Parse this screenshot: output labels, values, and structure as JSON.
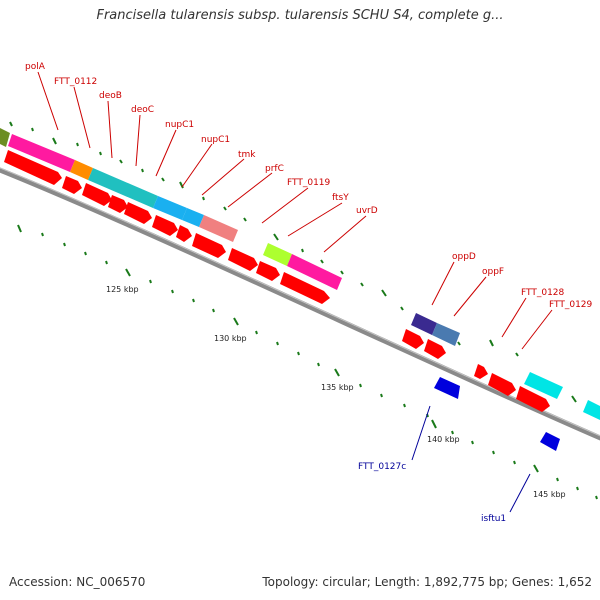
{
  "title": "Francisella tularensis subsp. tularensis SCHU S4, complete g...",
  "footer": {
    "accession": "Accession: NC_006570",
    "summary": "Topology: circular; Length: 1,892,775 bp; Genes: 1,652"
  },
  "colors": {
    "backbone": "#8a8a8a",
    "cds": "#ff0000",
    "reverse_cds": "#0000dd",
    "top_label": "#cc0000",
    "bottom_label": "#000099",
    "tick": "#1a7a1a"
  },
  "ticks": [
    {
      "label": "125 kbp"
    },
    {
      "label": "130 kbp"
    },
    {
      "label": "135 kbp"
    },
    {
      "label": "140 kbp"
    },
    {
      "label": "145 kbp"
    }
  ],
  "labels_top": [
    {
      "text": "polA"
    },
    {
      "text": "FTT_0112"
    },
    {
      "text": "deoB"
    },
    {
      "text": "deoC"
    },
    {
      "text": "nupC1"
    },
    {
      "text": "nupC1"
    },
    {
      "text": "tmk"
    },
    {
      "text": "prfC"
    },
    {
      "text": "FTT_0119"
    },
    {
      "text": "ftsY"
    },
    {
      "text": "uvrD"
    },
    {
      "text": "oppD"
    },
    {
      "text": "oppF"
    },
    {
      "text": "FTT_0128"
    },
    {
      "text": "FTT_0129"
    }
  ],
  "labels_bottom": [
    {
      "text": "FTT_0127c"
    },
    {
      "text": "isftu1"
    }
  ]
}
